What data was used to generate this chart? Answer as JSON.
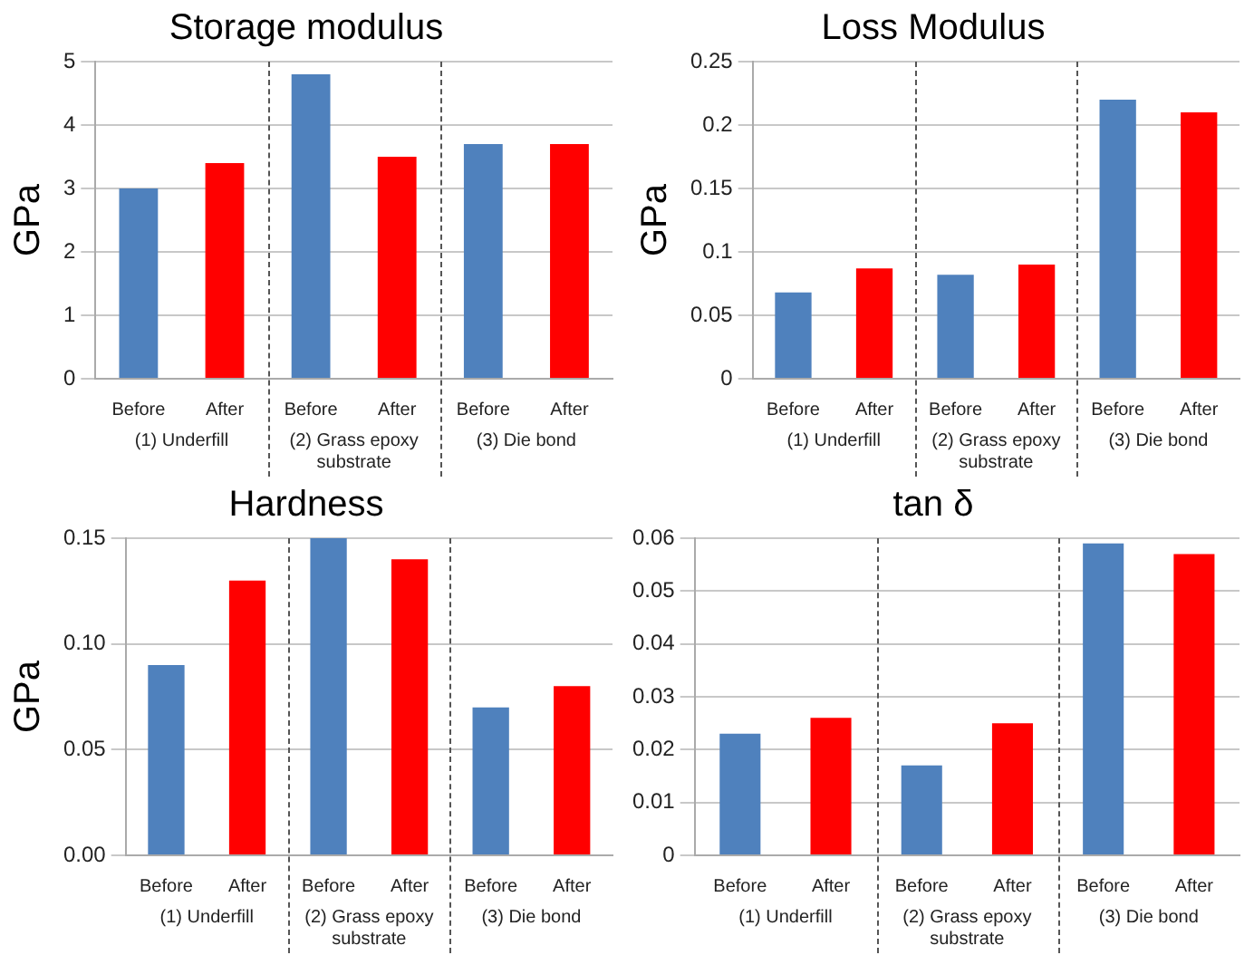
{
  "chart_data": [
    {
      "type": "bar",
      "title": "Storage modulus",
      "ylabel": "GPa",
      "categories": [
        "Before",
        "After",
        "Before",
        "After",
        "Before",
        "After"
      ],
      "values": [
        3.0,
        3.4,
        4.8,
        3.5,
        3.7,
        3.7
      ],
      "colors": [
        "#4f81bd",
        "#ff0000",
        "#4f81bd",
        "#ff0000",
        "#4f81bd",
        "#ff0000"
      ],
      "ylim": [
        0,
        5
      ],
      "yticks": [
        0,
        1,
        2,
        3,
        4,
        5
      ],
      "grid": "y",
      "legend": false,
      "annotations": [
        "(1) Underfill",
        "(2) Grass epoxy substrate",
        "(3) Die bond"
      ]
    },
    {
      "type": "bar",
      "title": "Loss Modulus",
      "ylabel": "GPa",
      "categories": [
        "Before",
        "After",
        "Before",
        "After",
        "Before",
        "After"
      ],
      "values": [
        0.068,
        0.087,
        0.082,
        0.09,
        0.22,
        0.21
      ],
      "colors": [
        "#4f81bd",
        "#ff0000",
        "#4f81bd",
        "#ff0000",
        "#4f81bd",
        "#ff0000"
      ],
      "ylim": [
        0,
        0.25
      ],
      "yticks": [
        0,
        0.05,
        0.1,
        0.15,
        0.2,
        0.25
      ],
      "grid": "y",
      "legend": false,
      "annotations": [
        "(1) Underfill",
        "(2) Grass epoxy substrate",
        "(3) Die bond"
      ]
    },
    {
      "type": "bar",
      "title": "Hardness",
      "ylabel": "GPa",
      "categories": [
        "Before",
        "After",
        "Before",
        "After",
        "Before",
        "After"
      ],
      "values": [
        0.09,
        0.13,
        0.15,
        0.14,
        0.07,
        0.08
      ],
      "colors": [
        "#4f81bd",
        "#ff0000",
        "#4f81bd",
        "#ff0000",
        "#4f81bd",
        "#ff0000"
      ],
      "ylim": [
        0,
        0.15
      ],
      "yticks": [
        {
          "value": 0,
          "label": "0.00"
        },
        {
          "value": 0.05,
          "label": "0.05"
        },
        {
          "value": 0.1,
          "label": "0.10"
        },
        {
          "value": 0.15,
          "label": "0.15"
        }
      ],
      "grid": "y",
      "legend": false,
      "annotations": [
        "(1) Underfill",
        "(2) Grass epoxy substrate",
        "(3) Die bond"
      ]
    },
    {
      "type": "bar",
      "title": "tan δ",
      "categories": [
        "Before",
        "After",
        "Before",
        "After",
        "Before",
        "After"
      ],
      "values": [
        0.023,
        0.026,
        0.017,
        0.025,
        0.059,
        0.057
      ],
      "colors": [
        "#4f81bd",
        "#ff0000",
        "#4f81bd",
        "#ff0000",
        "#4f81bd",
        "#ff0000"
      ],
      "ylim": [
        0,
        0.06
      ],
      "yticks": [
        0,
        0.01,
        0.02,
        0.03,
        0.04,
        0.05,
        0.06
      ],
      "grid": "y",
      "legend": false,
      "annotations": [
        "(1) Underfill",
        "(2) Grass epoxy substrate",
        "(3) Die bond"
      ]
    }
  ]
}
